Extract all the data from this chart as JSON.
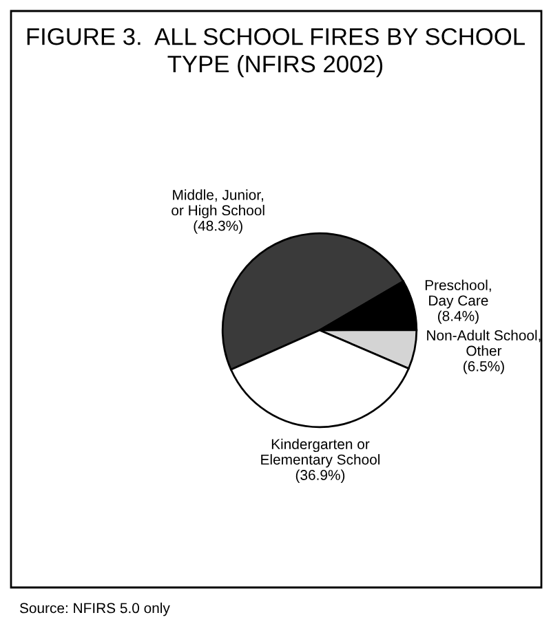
{
  "chart_data": {
    "type": "pie",
    "title": "FIGURE 3.  ALL SCHOOL FIRES BY SCHOOL\nTYPE (NFIRS 2002)",
    "categories": [
      "Middle, Junior,\nor High School",
      "Preschool,\nDay Care",
      "Non-Adult School,\nOther",
      "Kindergarten or\nElementary School"
    ],
    "values": [
      48.3,
      8.4,
      6.5,
      36.9
    ],
    "value_labels": [
      "(48.3%)",
      "(8.4%)",
      "(6.5%)",
      "(36.9%)"
    ],
    "colors": [
      "#3a3a3a",
      "#000000",
      "#d4d4d4",
      "#ffffff"
    ],
    "annotations": [
      "Source: NFIRS 5.0 only"
    ]
  }
}
